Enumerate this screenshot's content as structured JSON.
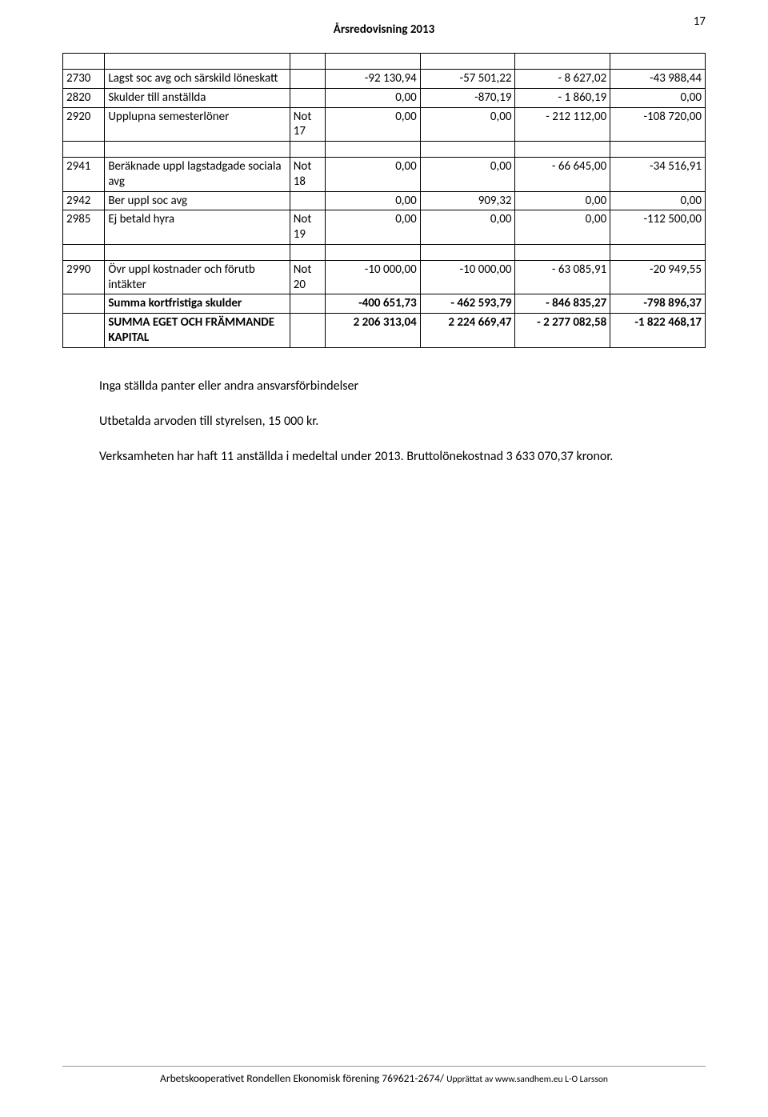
{
  "header": {
    "title": "Årsredovisning 2013"
  },
  "pageNumber": "17",
  "rows": [
    {
      "type": "spacer"
    },
    {
      "code": "2730",
      "desc": "Lagst soc avg och särskild löneskatt",
      "note": "",
      "c1": "-92 130,94",
      "c2": "-57 501,22",
      "c3": "- 8 627,02",
      "c4": "-43 988,44"
    },
    {
      "code": "2820",
      "desc": "Skulder till anställda",
      "note": "",
      "c1": "0,00",
      "c2": "-870,19",
      "c3": "- 1 860,19",
      "c4": "0,00"
    },
    {
      "code": "2920",
      "desc": "Upplupna semesterlöner",
      "note": "Not 17",
      "c1": "0,00",
      "c2": "0,00",
      "c3": "- 212 112,00",
      "c4": "-108 720,00"
    },
    {
      "type": "spacer"
    },
    {
      "code": "2941",
      "desc": "Beräknade uppl lagstadgade sociala avg",
      "note": "Not 18",
      "c1": "0,00",
      "c2": "0,00",
      "c3": "- 66 645,00",
      "c4": "-34 516,91"
    },
    {
      "code": "2942",
      "desc": "Ber uppl soc avg",
      "note": "",
      "c1": "0,00",
      "c2": "909,32",
      "c3": "0,00",
      "c4": "0,00"
    },
    {
      "code": "2985",
      "desc": "Ej betald hyra",
      "note": "Not 19",
      "c1": "0,00",
      "c2": "0,00",
      "c3": "0,00",
      "c4": "-112 500,00"
    },
    {
      "type": "spacer"
    },
    {
      "code": "2990",
      "desc": "Övr uppl kostnader och förutb intäkter",
      "note": "Not 20",
      "c1": "-10 000,00",
      "c2": "-10 000,00",
      "c3": "- 63 085,91",
      "c4": "-20 949,55"
    },
    {
      "bold": true,
      "code": "",
      "desc": "Summa kortfristiga skulder",
      "note": "",
      "c1": "-400 651,73",
      "c2": "- 462 593,79",
      "c3": "- 846 835,27",
      "c4": "-798 896,37"
    },
    {
      "bold": true,
      "code": "",
      "desc": "SUMMA EGET OCH FRÄMMANDE KAPITAL",
      "note": "",
      "c1": "2 206 313,04",
      "c2": "2 224 669,47",
      "c3": "- 2 277 082,58",
      "c4": "-1 822 468,17"
    }
  ],
  "notes": {
    "p1": "Inga ställda panter eller andra ansvarsförbindelser",
    "p2": "Utbetalda arvoden till styrelsen, 15 000 kr.",
    "p3": "Verksamheten har haft 11 anställda i medeltal under 2013. Bruttolönekostnad 3 633 070,37 kronor."
  },
  "footer": {
    "main": "Arbetskooperativet Rondellen Ekonomisk förening 769621-2674/ ",
    "small": "Upprättat av www.sandhem.eu L-O Larsson"
  }
}
